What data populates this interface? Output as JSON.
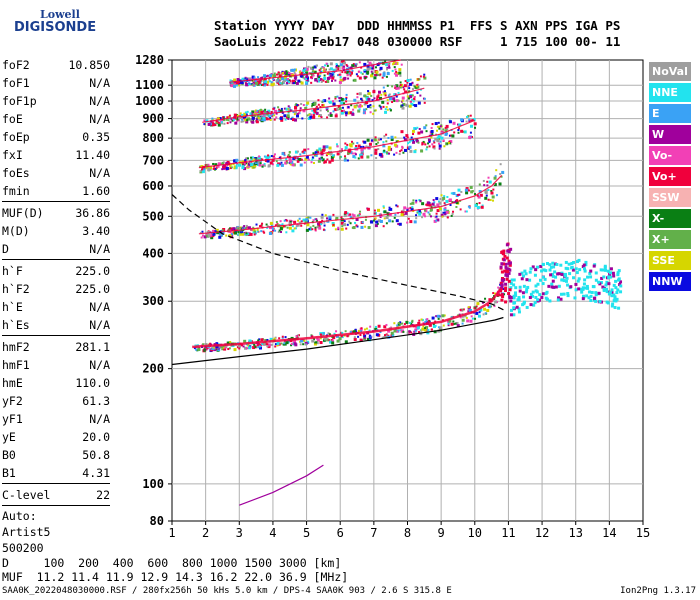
{
  "logo": {
    "line1": "Lowell",
    "line2": "DIGISONDE"
  },
  "header": {
    "line1": "Station YYYY DAY   DDD HHMMSS P1  FFS S AXN PPS IGA PS",
    "line2": "SaoLuis 2022 Feb17 048 030000 RSF     1 715 100 00- 11"
  },
  "params": {
    "group1": [
      {
        "key": "foF2",
        "value": "10.850"
      },
      {
        "key": "foF1",
        "value": "N/A"
      },
      {
        "key": "foF1p",
        "value": "N/A"
      },
      {
        "key": "foE",
        "value": "N/A"
      },
      {
        "key": "foEp",
        "value": "0.35"
      },
      {
        "key": "fxI",
        "value": "11.40"
      },
      {
        "key": "foEs",
        "value": "N/A"
      },
      {
        "key": "fmin",
        "value": "1.60"
      }
    ],
    "group2": [
      {
        "key": "MUF(D)",
        "value": "36.86"
      },
      {
        "key": "M(D)",
        "value": "3.40"
      },
      {
        "key": "D",
        "value": "N/A"
      }
    ],
    "group3": [
      {
        "key": "h`F",
        "value": "225.0"
      },
      {
        "key": "h`F2",
        "value": "225.0"
      },
      {
        "key": "h`E",
        "value": "N/A"
      },
      {
        "key": "h`Es",
        "value": "N/A"
      }
    ],
    "group4": [
      {
        "key": "hmF2",
        "value": "281.1"
      },
      {
        "key": "hmF1",
        "value": "N/A"
      },
      {
        "key": "hmE",
        "value": "110.0"
      },
      {
        "key": "yF2",
        "value": "61.3"
      },
      {
        "key": "yF1",
        "value": "N/A"
      },
      {
        "key": "yE",
        "value": "20.0"
      },
      {
        "key": "B0",
        "value": "50.8"
      },
      {
        "key": "B1",
        "value": "4.31"
      }
    ],
    "group5": [
      {
        "key": "C-level",
        "value": "22"
      }
    ],
    "autoscaling": [
      "Auto:",
      "Artist5",
      "500200"
    ]
  },
  "legend": [
    {
      "label": "NoVal",
      "color": "#9e9e9e"
    },
    {
      "label": "NNE",
      "color": "#22e3ee"
    },
    {
      "label": "E",
      "color": "#3aa2f5"
    },
    {
      "label": "W",
      "color": "#a0009c"
    },
    {
      "label": "Vo-",
      "color": "#f240b6"
    },
    {
      "label": "Vo+",
      "color": "#f0003c"
    },
    {
      "label": "SSW",
      "color": "#f7b2b2"
    },
    {
      "label": "X-",
      "color": "#0a7f14"
    },
    {
      "label": "X+",
      "color": "#62b04a"
    },
    {
      "label": "SSE",
      "color": "#d6d600"
    },
    {
      "label": "NNW",
      "color": "#0a0ae0"
    }
  ],
  "muf_table": {
    "line1": "D     100  200  400  600  800 1000 1500 3000 [km]",
    "line2": "MUF  11.2 11.4 11.9 12.9 14.3 16.2 22.0 36.9 [MHz]"
  },
  "footer": {
    "left": "SAA0K_2022048030000.RSF / 280fx256h 50 kHs 5.0 km / DPS-4 SAA0K 903 / 2.6 S 315.8 E",
    "right": "Ion2Png 1.3.17"
  },
  "chart_data": {
    "type": "scatter",
    "title": "",
    "xlabel": "[MHz]",
    "ylabel": "[km]",
    "xlim": [
      1,
      15
    ],
    "ylim": [
      80,
      1280
    ],
    "y_scale": "log",
    "x_ticks": [
      1,
      2,
      3,
      4,
      5,
      6,
      7,
      8,
      9,
      10,
      11,
      12,
      13,
      14,
      15
    ],
    "y_ticks": [
      80,
      100,
      200,
      300,
      400,
      500,
      600,
      700,
      800,
      900,
      1000,
      1100,
      1280
    ],
    "grid": true,
    "legend_position": "right",
    "traces": [
      {
        "name": "F-layer 1st hop",
        "color": "#f0003c",
        "x": [
          1.6,
          3,
          5,
          7,
          9,
          10,
          10.5,
          10.85
        ],
        "y": [
          228,
          232,
          240,
          250,
          265,
          282,
          300,
          330
        ]
      },
      {
        "name": "F-layer 2nd hop",
        "color": "#f0003c",
        "x": [
          1.8,
          3,
          5,
          7,
          9,
          10,
          10.5,
          10.8
        ],
        "y": [
          450,
          460,
          480,
          500,
          530,
          565,
          600,
          640
        ]
      },
      {
        "name": "F-layer 3rd hop",
        "color": "#f0003c",
        "x": [
          1.8,
          3,
          5,
          7,
          9,
          10
        ],
        "y": [
          670,
          690,
          720,
          760,
          820,
          890
        ]
      },
      {
        "name": "F-layer 4th hop",
        "color": "#f0003c",
        "x": [
          1.9,
          3,
          5,
          7,
          8.5
        ],
        "y": [
          880,
          910,
          950,
          1000,
          1080
        ]
      },
      {
        "name": "F-layer 5th hop",
        "color": "#f0003c",
        "x": [
          2.7,
          4,
          6,
          7.8
        ],
        "y": [
          1120,
          1150,
          1200,
          1280
        ]
      },
      {
        "name": "Spread echoes",
        "color": "#22e3ee",
        "x": [
          11,
          12,
          13,
          14,
          14.3
        ],
        "y": [
          310,
          340,
          345,
          330,
          325
        ]
      }
    ],
    "profile_curves": [
      {
        "name": "dashed profile",
        "style": "dashed",
        "x": [
          1,
          1.5,
          2.5,
          4,
          6,
          8,
          9.5,
          10.5,
          10.85
        ],
        "y": [
          570,
          520,
          450,
          400,
          360,
          330,
          310,
          295,
          285
        ]
      },
      {
        "name": "solid profile",
        "style": "solid",
        "x": [
          1,
          3,
          5,
          7,
          9,
          10,
          10.6,
          10.85
        ],
        "y": [
          205,
          215,
          225,
          238,
          252,
          262,
          268,
          272
        ]
      },
      {
        "name": "E-region trace",
        "style": "solid",
        "x": [
          3,
          4,
          5,
          5.5
        ],
        "y": [
          88,
          95,
          105,
          112
        ]
      }
    ]
  }
}
